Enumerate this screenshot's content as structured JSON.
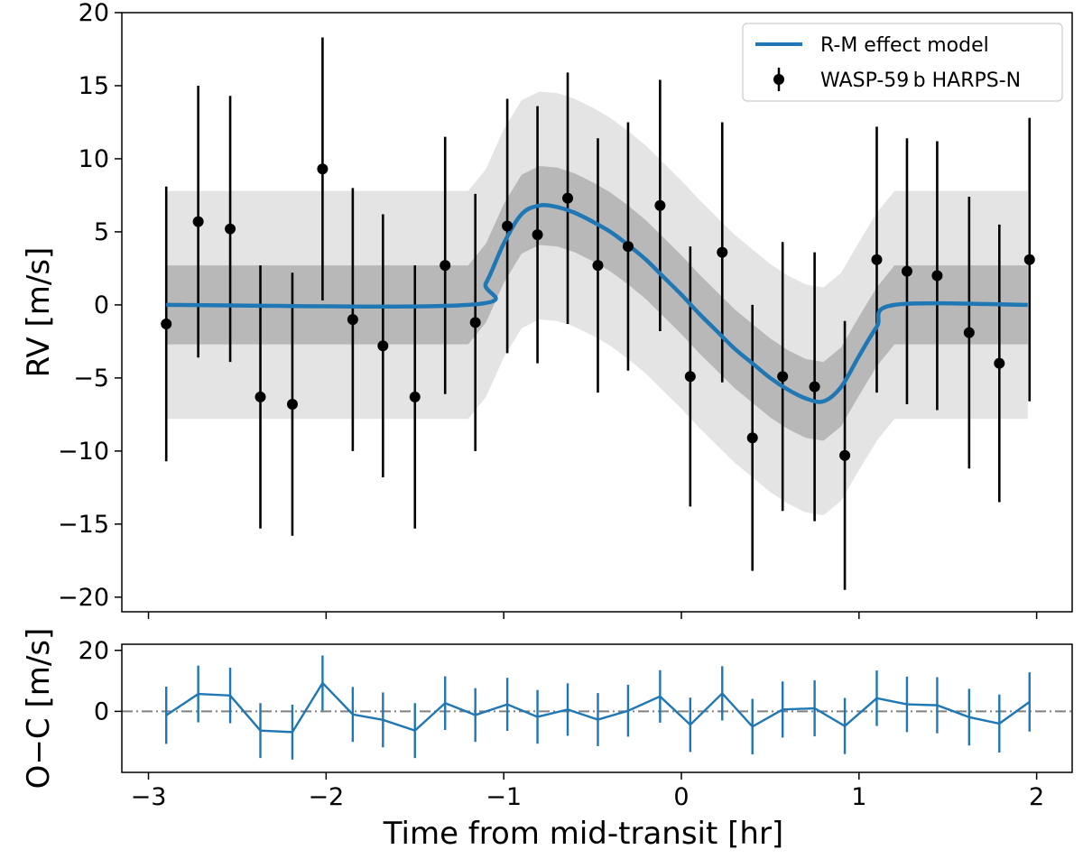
{
  "chart_data": [
    {
      "type": "scatter",
      "panel": "main",
      "xlabel": "Time from mid-transit [hr]",
      "ylabel": "RV [m/s]",
      "xlim": [
        -3.15,
        2.2
      ],
      "ylim": [
        -21,
        20
      ],
      "xticks": [
        -3,
        -2,
        -1,
        0,
        1,
        2
      ],
      "xtick_labels": [
        "−3",
        "−2",
        "−1",
        "0",
        "1",
        "2"
      ],
      "yticks": [
        20,
        15,
        10,
        5,
        0,
        -5,
        -10,
        -15,
        -20
      ],
      "ytick_labels": [
        "20",
        "15",
        "10",
        "5",
        "0",
        "−5",
        "−10",
        "−15",
        "−20"
      ],
      "legend": {
        "placement": "top-right",
        "entries": [
          "R-M effect model",
          "WASP-59 b HARPS-N"
        ]
      },
      "model": {
        "name": "R-M effect model",
        "color": "#1f77b4",
        "x": [
          -2.9,
          -1.2,
          -1.1,
          -1.0,
          -0.9,
          -0.8,
          -0.7,
          -0.6,
          -0.5,
          -0.4,
          -0.3,
          -0.2,
          -0.1,
          0.0,
          0.1,
          0.2,
          0.3,
          0.4,
          0.5,
          0.6,
          0.7,
          0.8,
          0.9,
          1.0,
          1.1,
          1.2,
          1.95
        ],
        "y": [
          0,
          0,
          1.5,
          4.2,
          6.2,
          6.8,
          6.7,
          6.3,
          5.7,
          5.0,
          4.1,
          3.1,
          1.9,
          0.7,
          -0.6,
          -1.8,
          -3.0,
          -4.0,
          -5.0,
          -5.8,
          -6.4,
          -6.6,
          -5.6,
          -3.5,
          -1.5,
          0,
          0
        ],
        "band_inner": 2.7,
        "band_outer": 7.8,
        "band_inner_color": "#b8b8b8",
        "band_outer_color": "#e4e4e4"
      },
      "series": [
        {
          "name": "WASP-59 b HARPS-N",
          "color": "#000000",
          "x": [
            -2.9,
            -2.72,
            -2.54,
            -2.37,
            -2.19,
            -2.02,
            -1.85,
            -1.68,
            -1.5,
            -1.33,
            -1.16,
            -0.98,
            -0.81,
            -0.64,
            -0.47,
            -0.3,
            -0.12,
            0.05,
            0.23,
            0.4,
            0.57,
            0.75,
            0.92,
            1.1,
            1.27,
            1.44,
            1.62,
            1.79,
            1.96
          ],
          "y": [
            -1.3,
            5.7,
            5.2,
            -6.3,
            -6.8,
            9.3,
            -1.0,
            -2.8,
            -6.3,
            2.7,
            -1.2,
            5.4,
            4.8,
            7.3,
            2.7,
            4.0,
            6.8,
            -4.9,
            3.6,
            -9.1,
            -4.9,
            -5.6,
            -10.3,
            3.1,
            2.3,
            2.0,
            -1.9,
            -4.0,
            3.1
          ],
          "err": [
            9.4,
            9.3,
            9.1,
            9.0,
            9.0,
            9.0,
            9.0,
            9.0,
            9.0,
            8.8,
            8.8,
            8.7,
            8.8,
            8.6,
            8.7,
            8.5,
            8.6,
            8.9,
            8.9,
            9.1,
            9.2,
            9.2,
            9.2,
            9.1,
            9.1,
            9.2,
            9.3,
            9.5,
            9.7
          ]
        }
      ]
    },
    {
      "type": "line",
      "panel": "residuals",
      "xlabel": "Time from mid-transit [hr]",
      "ylabel": "O−C [m/s]",
      "xlim": [
        -3.15,
        2.2
      ],
      "ylim": [
        -20,
        22
      ],
      "yticks": [
        20,
        0
      ],
      "ytick_labels": [
        "20",
        "0"
      ],
      "reference_line": 0,
      "color": "#1f77b4",
      "series": [
        {
          "name": "O−C",
          "x": [
            -2.9,
            -2.72,
            -2.54,
            -2.37,
            -2.19,
            -2.02,
            -1.85,
            -1.68,
            -1.5,
            -1.33,
            -1.16,
            -0.98,
            -0.81,
            -0.64,
            -0.47,
            -0.3,
            -0.12,
            0.05,
            0.23,
            0.4,
            0.57,
            0.75,
            0.92,
            1.1,
            1.27,
            1.44,
            1.62,
            1.79,
            1.96
          ],
          "y": [
            -1.3,
            5.7,
            5.2,
            -6.3,
            -6.8,
            9.3,
            -1.0,
            -2.8,
            -6.3,
            2.7,
            -1.2,
            2.3,
            -1.8,
            0.6,
            -2.7,
            0.2,
            4.9,
            -4.4,
            5.9,
            -5.0,
            0.6,
            1.0,
            -4.8,
            4.3,
            2.3,
            2.0,
            -1.9,
            -4.0,
            3.1
          ],
          "err": [
            9.4,
            9.3,
            9.1,
            9.0,
            9.0,
            9.0,
            9.0,
            9.0,
            9.0,
            8.8,
            8.8,
            8.7,
            8.8,
            8.6,
            8.7,
            8.5,
            8.6,
            8.9,
            8.9,
            9.1,
            9.2,
            9.2,
            9.2,
            9.1,
            9.1,
            9.2,
            9.3,
            9.5,
            9.7
          ]
        }
      ]
    }
  ]
}
